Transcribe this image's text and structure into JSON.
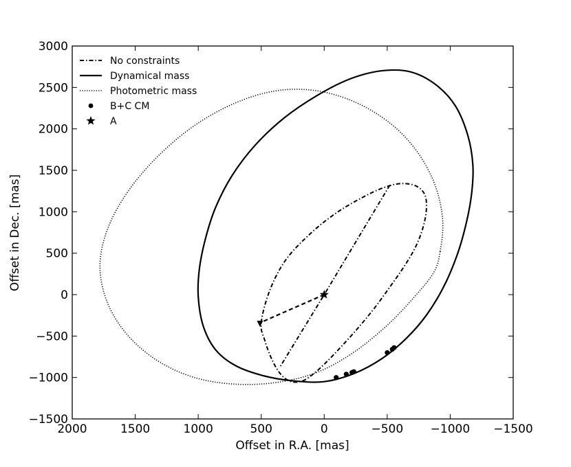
{
  "chart_data": {
    "type": "line",
    "xlabel": "Offset in R.A. [mas]",
    "ylabel": "Offset in Dec. [mas]",
    "xlim": [
      2000,
      -1500
    ],
    "ylim": [
      -1500,
      3000
    ],
    "x_ticks": [
      2000,
      1500,
      1000,
      500,
      0,
      -500,
      -1000,
      -1500
    ],
    "y_ticks": [
      3000,
      2500,
      2000,
      1500,
      1000,
      500,
      0,
      -500,
      -1000,
      -1500
    ],
    "x_tick_labels": [
      "2000",
      "1500",
      "1000",
      "500",
      "0",
      "−500",
      "−1000",
      "−1500"
    ],
    "y_tick_labels": [
      "3000",
      "2500",
      "2000",
      "1500",
      "1000",
      "500",
      "0",
      "−500",
      "−1000",
      "−1500"
    ],
    "grid": false,
    "legend_position": "top-left",
    "legend": [
      {
        "label": "No constraints",
        "style": "dashdot"
      },
      {
        "label": "Dynamical mass",
        "style": "solid"
      },
      {
        "label": "Photometric mass",
        "style": "dotted"
      },
      {
        "label": "B+C CM",
        "style": "circle-marker"
      },
      {
        "label": "A",
        "style": "star-marker"
      }
    ],
    "series": [
      {
        "name": "No constraints",
        "style": "dashdot",
        "x": [
          500,
          430,
          300,
          100,
          -100,
          -300,
          -470,
          -610,
          -730,
          -800,
          -810,
          -780,
          -720,
          -630,
          -520,
          -400,
          -270,
          -140,
          -20,
          80,
          170,
          260,
          340,
          410,
          470,
          500
        ],
        "y": [
          -340,
          60,
          430,
          750,
          990,
          1170,
          1290,
          1340,
          1310,
          1200,
          1010,
          790,
          560,
          330,
          90,
          -160,
          -400,
          -620,
          -810,
          -950,
          -1040,
          -1050,
          -970,
          -800,
          -560,
          -340
        ]
      },
      {
        "name": "Dynamical mass",
        "style": "solid",
        "x": [
          -1170,
          -1180,
          -1140,
          -1040,
          -880,
          -680,
          -450,
          -200,
          60,
          320,
          550,
          730,
          860,
          940,
          990,
          1000,
          960,
          860,
          700,
          480,
          250,
          0,
          -240,
          -460,
          -650,
          -810,
          -950,
          -1060,
          -1130,
          -1170
        ],
        "y": [
          1220,
          1560,
          1920,
          2280,
          2540,
          2690,
          2700,
          2600,
          2400,
          2130,
          1800,
          1440,
          1060,
          690,
          320,
          -20,
          -380,
          -670,
          -860,
          -980,
          -1040,
          -1050,
          -950,
          -770,
          -530,
          -250,
          100,
          500,
          880,
          1220
        ]
      },
      {
        "name": "Photometric mass",
        "style": "dotted",
        "x": [
          -920,
          -940,
          -880,
          -740,
          -530,
          -250,
          60,
          380,
          710,
          1030,
          1320,
          1560,
          1720,
          1780,
          1720,
          1560,
          1320,
          1030,
          710,
          380,
          60,
          -230,
          -500,
          -720,
          -870,
          -920
        ],
        "y": [
          520,
          900,
          1320,
          1720,
          2060,
          2320,
          2460,
          2460,
          2310,
          2040,
          1670,
          1240,
          790,
          340,
          -100,
          -490,
          -800,
          -1000,
          -1080,
          -1060,
          -940,
          -700,
          -370,
          -20,
          270,
          520
        ]
      },
      {
        "name": "Connector A to orbit (dashdot)",
        "style": "dashdot",
        "x": [
          -520,
          0,
          350
        ],
        "y": [
          1320,
          0,
          -870
        ]
      },
      {
        "name": "Connector A to orbit (dashed)",
        "style": "dashed",
        "x": [
          0,
          510
        ],
        "y": [
          0,
          -340
        ]
      },
      {
        "name": "B+C CM",
        "style": "circle-marker",
        "x": [
          -95,
          -175,
          -220,
          -235,
          -500,
          -540,
          -555
        ],
        "y": [
          -1000,
          -960,
          -940,
          -930,
          -700,
          -660,
          -640
        ]
      },
      {
        "name": "A",
        "style": "star-marker",
        "x": [
          0
        ],
        "y": [
          0
        ]
      }
    ],
    "arrowhead": {
      "x": 510,
      "y": -340
    }
  }
}
